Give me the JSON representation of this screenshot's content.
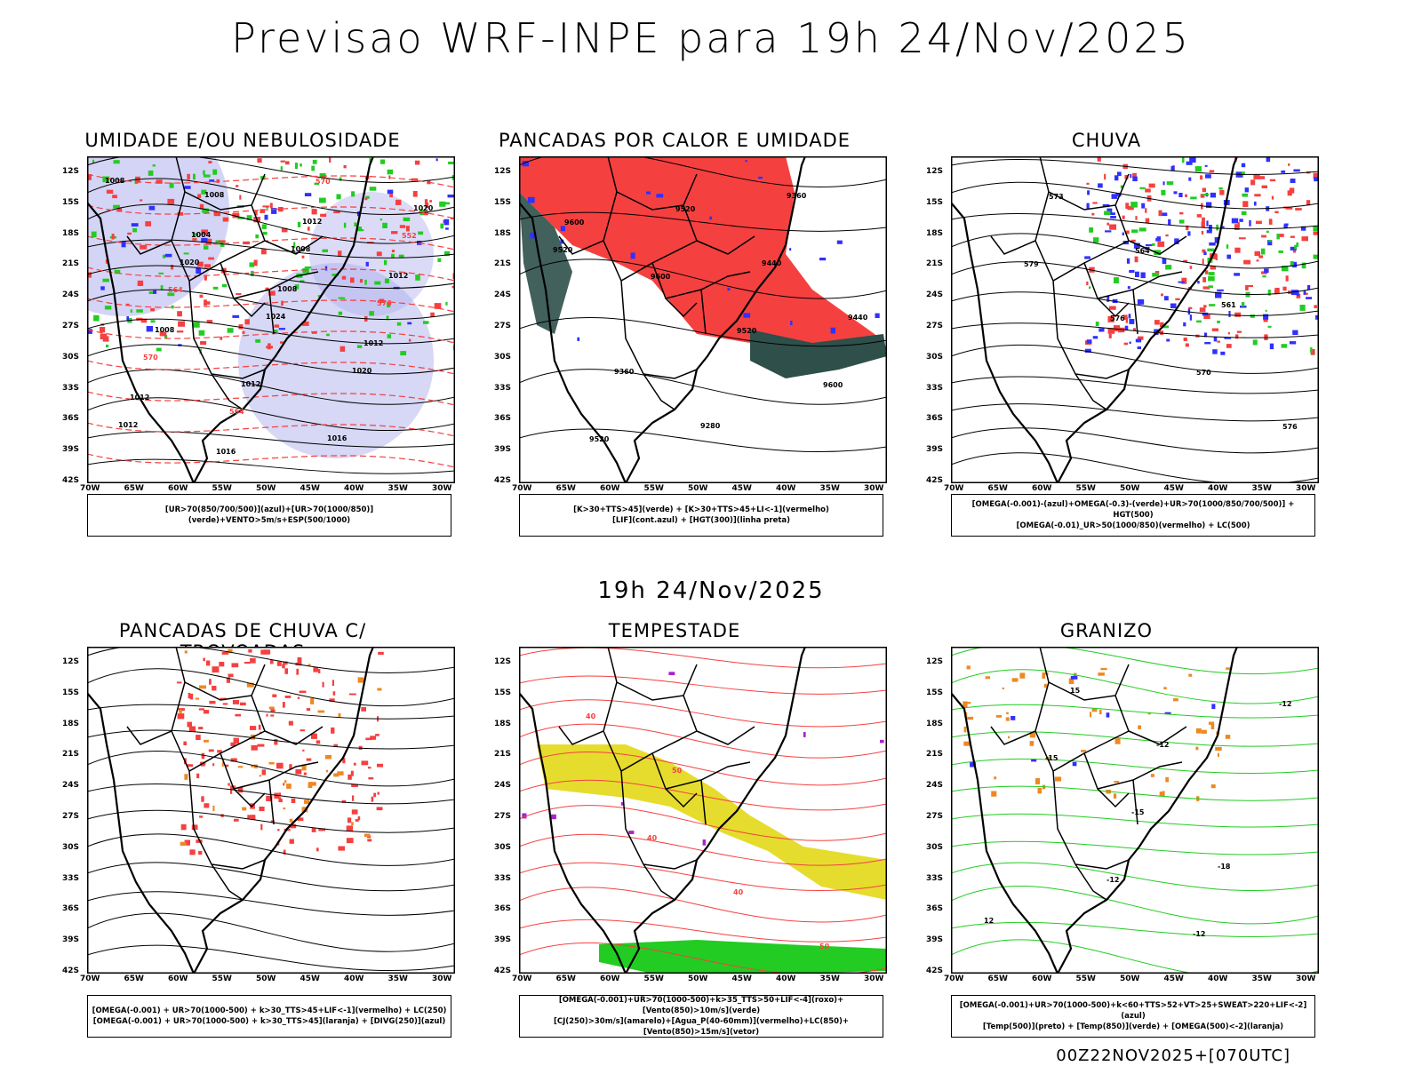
{
  "header": {
    "title": "Previsao WRF-INPE  para 19h 24/Nov/2025"
  },
  "mid_time": "19h 24/Nov/2025",
  "footer": "00Z22NOV2025+[070UTC]",
  "axes": {
    "lat_labels": [
      "12S",
      "15S",
      "18S",
      "21S",
      "24S",
      "27S",
      "30S",
      "33S",
      "36S",
      "39S",
      "42S"
    ],
    "lon_labels": [
      "70W",
      "65W",
      "60W",
      "55W",
      "50W",
      "45W",
      "40W",
      "35W",
      "30W"
    ]
  },
  "panels": [
    {
      "id": "umidade",
      "title": "UMIDADE E/OU NEBULOSIDADE",
      "legend": [
        "[UR>70(850/700/500)](azul)+[UR>70(1000/850)](verde)+VENTO>5m/s+ESP(500/1000)"
      ],
      "contour_labels": [
        "1008",
        "1004",
        "1008",
        "1012",
        "1012",
        "1016",
        "1012",
        "1012",
        "1008",
        "1012",
        "1016",
        "1020",
        "1020",
        "1024",
        "1020",
        "1012",
        "1008",
        "1008",
        "576",
        "570",
        "564",
        "570",
        "552",
        "564"
      ]
    },
    {
      "id": "pancadas-calor",
      "title": "PANCADAS POR CALOR E UMIDADE",
      "legend": [
        "[K>30+TTS>45](verde) + [K>30+TTS>45+LI<-1](vermelho)",
        "[LIF](cont.azul) + [HGT(300)](linha preta)"
      ],
      "contour_labels": [
        "9600",
        "9600",
        "9520",
        "9600",
        "9520",
        "9520",
        "9440",
        "9440",
        "9360",
        "9280",
        "9360",
        "9520"
      ]
    },
    {
      "id": "chuva",
      "title": "CHUVA",
      "legend": [
        "[OMEGA(-0.001)-(azul)+OMEGA(-0.3)-(verde)+UR>70(1000/850/700/500)] + HGT(500)",
        "[OMEGA(-0.01)_UR>50(1000/850)(vermelho) + LC(500)"
      ],
      "contour_labels": [
        "579",
        "576",
        "570",
        "576",
        "573",
        "564",
        "561"
      ]
    },
    {
      "id": "trovoadas",
      "title": "PANCADAS DE CHUVA C/ TROVOADAS",
      "legend": [
        "[OMEGA(-0.001) + UR>70(1000-500) + k>30_TTS>45+LIF<-1](vermelho) + LC(250)",
        "[OMEGA(-0.001) + UR>70(1000-500) + k>30_TTS>45](laranja) + [DIVG(250)](azul)"
      ],
      "contour_labels": []
    },
    {
      "id": "tempestade",
      "title": "TEMPESTADE",
      "legend": [
        "[OMEGA(-0.001)+UR>70(1000-500)+k>35_TTS>50+LIF<-4](roxo)+[Vento(850)>10m/s](verde)",
        "[CJ(250)>30m/s](amarelo)+[Agua_P(40-60mm)](vermelho)+LC(850)+[Vento(850)>15m/s](vetor)"
      ],
      "contour_labels": [
        "40",
        "40",
        "50",
        "40",
        "50"
      ]
    },
    {
      "id": "granizo",
      "title": "GRANIZO",
      "legend": [
        "[OMEGA(-0.001)+UR>70(1000-500)+k<60+TTS>52+VT>25+SWEAT>220+LIF<-2](azul)",
        "[Temp(500)](preto) + [Temp(850)](verde) + [OMEGA(500)<-2](laranja)"
      ],
      "contour_labels": [
        "-12",
        "-12",
        "-12",
        "-15",
        "-15",
        "-18",
        "12",
        "15",
        "-12"
      ]
    }
  ],
  "colors": {
    "red": "#f54040",
    "blue": "#3030ff",
    "green": "#22cc22",
    "lavender": "#b0b0ee",
    "teal": "#2e4f4a",
    "yellow": "#e6dc2e",
    "orange": "#ee8822",
    "purple": "#aa22cc"
  }
}
